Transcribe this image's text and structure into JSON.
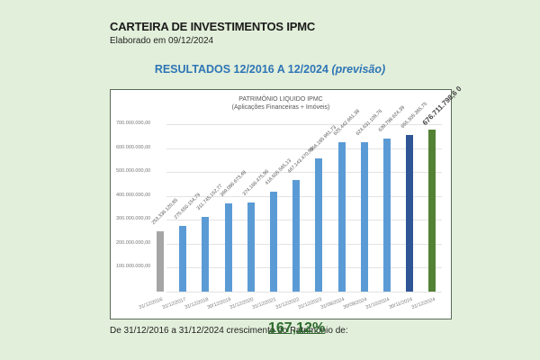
{
  "header": {
    "title": "CARTEIRA DE INVESTIMENTOS IPMC",
    "subtitle": "Elaborado em 09/12/2024",
    "results_main": "RESULTADOS 12/2016 A 12/2024 ",
    "results_italic": "(previsão)"
  },
  "footer": {
    "text": "De 31/12/2016 a 31/12/2024 crescimento do Patrimônio de:",
    "growth": "167,12%"
  },
  "colors": {
    "background": "#e2efda",
    "bar_default": "#5b9bd5",
    "bar_first": "#a5a5a5",
    "bar_nov": "#2f5597",
    "bar_forecast": "#548235",
    "results_title": "#2e75b6"
  },
  "chart_data": {
    "type": "bar",
    "title": "PATRIMÔNIO LIQUIDO IPMC",
    "subtitle": "(Aplicações Financeiras + Imóveis)",
    "xlabel": "",
    "ylabel": "",
    "ylim": [
      0,
      700000000
    ],
    "yticks": [
      "-",
      "100.000.000,00",
      "200.000.000,00",
      "300.000.000,00",
      "400.000.000,00",
      "500.000.000,00",
      "600.000.000,00",
      "700.000.000,00"
    ],
    "grid": true,
    "legend": "none",
    "categories": [
      "31/12/2016",
      "31/12/2017",
      "31/12/2018",
      "30/12/2019",
      "31/12/2020",
      "31/12/2021",
      "31/12/2022",
      "31/12/2023",
      "31/08/2024",
      "30/09/2024",
      "31/10/2024",
      "30/11/2024",
      "31/12/2024"
    ],
    "values": [
      253336120.85,
      275650154.79,
      311745152.77,
      369086673.48,
      374166475.96,
      416605565.13,
      467143470.89,
      556185961.73,
      625442661.38,
      624631109.76,
      639798624.39,
      655305365.75,
      676711798.6
    ],
    "labels": [
      "253.336.120,85",
      "275.650.154,79",
      "311.745.152,77",
      "369.086.673,48",
      "374.166.475,96",
      "416.605.565,13",
      "467.143.470,89",
      "556.185.961,73",
      "625.442.661,38",
      "624.631.109,76",
      "639.798.624,39",
      "655.305.365,75",
      "676.711.798,6 0"
    ],
    "bar_colors": [
      "#a5a5a5",
      "#5b9bd5",
      "#5b9bd5",
      "#5b9bd5",
      "#5b9bd5",
      "#5b9bd5",
      "#5b9bd5",
      "#5b9bd5",
      "#5b9bd5",
      "#5b9bd5",
      "#5b9bd5",
      "#2f5597",
      "#548235"
    ]
  }
}
